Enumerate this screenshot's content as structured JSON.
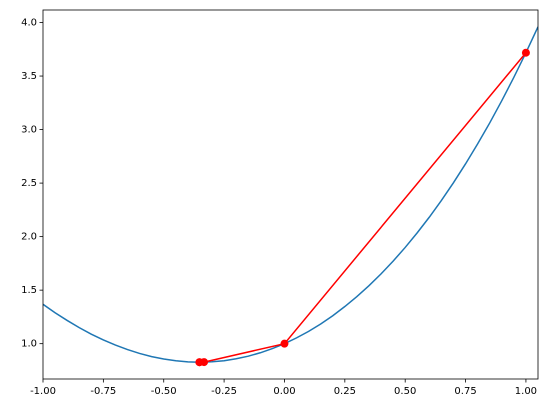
{
  "chart_data": {
    "type": "line",
    "xlim": [
      -1,
      1.05
    ],
    "ylim": [
      0.67,
      4.117
    ],
    "xticks": [
      {
        "value": -1,
        "label": "-1.00"
      },
      {
        "value": -0.75,
        "label": "-0.75"
      },
      {
        "value": -0.5,
        "label": "-0.50"
      },
      {
        "value": -0.25,
        "label": "-0.25"
      },
      {
        "value": 0,
        "label": "0.00"
      },
      {
        "value": 0.25,
        "label": "0.25"
      },
      {
        "value": 0.5,
        "label": "0.50"
      },
      {
        "value": 0.75,
        "label": "0.75"
      },
      {
        "value": 1,
        "label": "1.00"
      }
    ],
    "yticks": [
      {
        "value": 1,
        "label": "1.0"
      },
      {
        "value": 1.5,
        "label": "1.5"
      },
      {
        "value": 2,
        "label": "2.0"
      },
      {
        "value": 2.5,
        "label": "2.5"
      },
      {
        "value": 3,
        "label": "3.0"
      },
      {
        "value": 3.5,
        "label": "3.5"
      },
      {
        "value": 4,
        "label": "4.0"
      }
    ],
    "series": [
      {
        "color": "#1f77b4",
        "markers": false,
        "x": [
          -1,
          -0.95,
          -0.9,
          -0.85,
          -0.8,
          -0.75,
          -0.7,
          -0.65,
          -0.6,
          -0.55,
          -0.5,
          -0.45,
          -0.4,
          -0.35,
          -0.3,
          -0.25,
          -0.2,
          -0.15,
          -0.1,
          -0.05,
          0,
          0.05,
          0.1,
          0.15,
          0.2,
          0.25,
          0.3,
          0.35,
          0.4,
          0.45,
          0.5,
          0.55,
          0.6,
          0.65,
          0.7,
          0.75,
          0.8,
          0.85,
          0.9,
          0.95,
          1,
          1.05
        ],
        "values": [
          1.368,
          1.289,
          1.217,
          1.15,
          1.089,
          1.035,
          0.987,
          0.945,
          0.909,
          0.879,
          0.857,
          0.84,
          0.83,
          0.827,
          0.831,
          0.841,
          0.859,
          0.883,
          0.915,
          0.954,
          1,
          1.054,
          1.115,
          1.184,
          1.261,
          1.347,
          1.44,
          1.542,
          1.652,
          1.771,
          1.899,
          2.036,
          2.182,
          2.338,
          2.504,
          2.68,
          2.866,
          3.062,
          3.27,
          3.488,
          3.718,
          3.96
        ]
      },
      {
        "color": "#ff0000",
        "markers": true,
        "x": [
          1,
          0,
          -0.333,
          -0.352,
          -0.352
        ],
        "values": [
          3.718,
          1,
          0.828,
          0.827,
          0.827
        ]
      }
    ]
  }
}
